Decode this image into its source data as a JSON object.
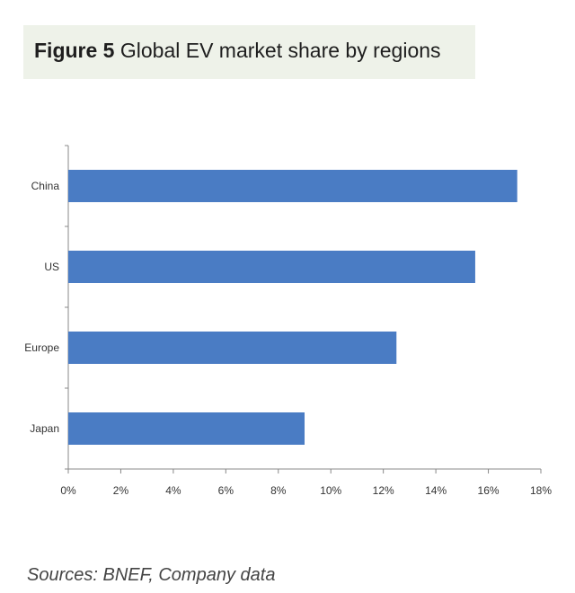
{
  "header": {
    "figure_label": "Figure 5",
    "title": "Global EV market share by regions"
  },
  "footer": {
    "source": "Sources: BNEF, Company data"
  },
  "colors": {
    "bar": "#4a7cc4",
    "title_bg": "#eef2e9",
    "axis": "#888888"
  },
  "chart_data": {
    "type": "bar",
    "orientation": "horizontal",
    "title": "Global EV market share by regions",
    "categories": [
      "China",
      "US",
      "Europe",
      "Japan"
    ],
    "values": [
      17.1,
      15.5,
      12.5,
      9.0
    ],
    "unit": "%",
    "xlim": [
      0,
      18
    ],
    "xticks": [
      "0%",
      "2%",
      "4%",
      "6%",
      "8%",
      "10%",
      "12%",
      "14%",
      "16%",
      "18%"
    ],
    "grid": false,
    "legend": "none"
  }
}
